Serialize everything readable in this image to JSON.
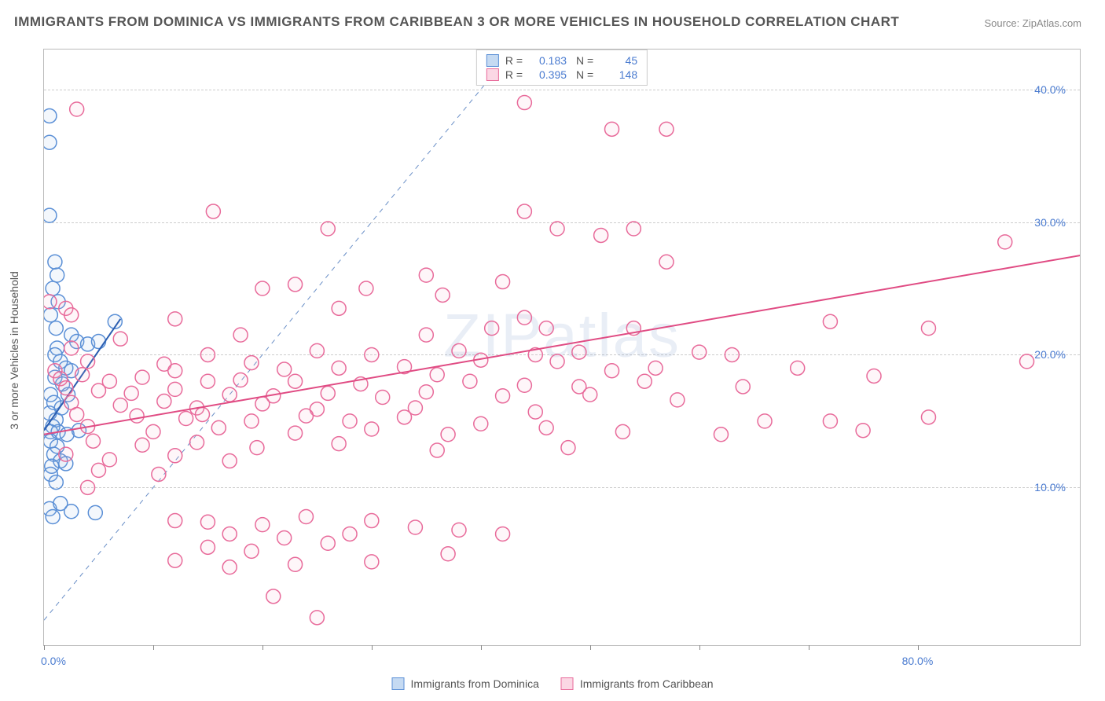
{
  "title": "IMMIGRANTS FROM DOMINICA VS IMMIGRANTS FROM CARIBBEAN 3 OR MORE VEHICLES IN HOUSEHOLD CORRELATION CHART",
  "source": "Source: ZipAtlas.com",
  "ylabel": "3 or more Vehicles in Household",
  "watermark": "ZIPatlas",
  "chart": {
    "type": "scatter",
    "xlim": [
      0,
      95
    ],
    "ylim": [
      -2,
      43
    ],
    "xticks": [
      0,
      10,
      20,
      30,
      40,
      50,
      60,
      70,
      80
    ],
    "xtick_labels": {
      "0": "0.0%",
      "80": "80.0%"
    },
    "yticks_grid": [
      10,
      20,
      30,
      40
    ],
    "ytick_labels": {
      "10": "10.0%",
      "20": "20.0%",
      "30": "30.0%",
      "40": "40.0%"
    },
    "grid_color": "#cccccc",
    "border_color": "#bbbbbb",
    "background_color": "#ffffff",
    "marker_radius": 9,
    "marker_stroke_width": 1.5,
    "marker_fill_opacity": 0.12,
    "diagonal": {
      "color": "#6a8fc7",
      "dash": "6,6",
      "width": 1
    }
  },
  "series": [
    {
      "id": "dominica",
      "label": "Immigrants from Dominica",
      "color_stroke": "#5a8fd6",
      "color_fill": "#9cc0e8",
      "R": "0.183",
      "N": "45",
      "regression": {
        "x1": 0,
        "y1": 14.3,
        "x2": 7,
        "y2": 22.7,
        "color": "#2a5db0",
        "width": 2
      },
      "points": [
        [
          0.5,
          38
        ],
        [
          0.5,
          36
        ],
        [
          0.5,
          30.5
        ],
        [
          1,
          27
        ],
        [
          1.2,
          26
        ],
        [
          0.8,
          25
        ],
        [
          1.3,
          24
        ],
        [
          0.6,
          23
        ],
        [
          1.1,
          22
        ],
        [
          2.5,
          21.5
        ],
        [
          3,
          21
        ],
        [
          4,
          20.8
        ],
        [
          5,
          21
        ],
        [
          6.5,
          22.5
        ],
        [
          1.2,
          20.5
        ],
        [
          1,
          20
        ],
        [
          1.5,
          19.5
        ],
        [
          2,
          19
        ],
        [
          2.5,
          18.8
        ],
        [
          1,
          18.3
        ],
        [
          1.7,
          17.8
        ],
        [
          2.2,
          17
        ],
        [
          0.6,
          17
        ],
        [
          0.9,
          16.4
        ],
        [
          1.6,
          16
        ],
        [
          0.5,
          15.6
        ],
        [
          1.1,
          15.1
        ],
        [
          0.8,
          14.6
        ],
        [
          0.6,
          14.2
        ],
        [
          1.3,
          14.2
        ],
        [
          2.1,
          14
        ],
        [
          3.2,
          14.3
        ],
        [
          0.6,
          13.5
        ],
        [
          1.2,
          13.1
        ],
        [
          0.9,
          12.5
        ],
        [
          1.5,
          12
        ],
        [
          0.7,
          11.6
        ],
        [
          2,
          11.8
        ],
        [
          0.6,
          11
        ],
        [
          1.1,
          10.4
        ],
        [
          0.5,
          8.4
        ],
        [
          2.5,
          8.2
        ],
        [
          4.7,
          8.1
        ],
        [
          0.8,
          7.8
        ],
        [
          1.5,
          8.8
        ]
      ]
    },
    {
      "id": "caribbean",
      "label": "Immigrants from Caribbean",
      "color_stroke": "#e86a9a",
      "color_fill": "#f5b6cd",
      "R": "0.395",
      "N": "148",
      "regression": {
        "x1": 0,
        "y1": 14.0,
        "x2": 95,
        "y2": 27.5,
        "color": "#e04b83",
        "width": 2
      },
      "points": [
        [
          44,
          39
        ],
        [
          52,
          37
        ],
        [
          57,
          37
        ],
        [
          3,
          38.5
        ],
        [
          15.5,
          30.8
        ],
        [
          44,
          30.8
        ],
        [
          26,
          29.5
        ],
        [
          47,
          29.5
        ],
        [
          54,
          29.5
        ],
        [
          51,
          29
        ],
        [
          88,
          28.5
        ],
        [
          57,
          27
        ],
        [
          35,
          26
        ],
        [
          42,
          25.5
        ],
        [
          20,
          25
        ],
        [
          23,
          25.3
        ],
        [
          29.5,
          25
        ],
        [
          36.5,
          24.5
        ],
        [
          0.5,
          24
        ],
        [
          2,
          23.5
        ],
        [
          2.5,
          23
        ],
        [
          27,
          23.5
        ],
        [
          12,
          22.7
        ],
        [
          72,
          22.5
        ],
        [
          41,
          22
        ],
        [
          44,
          22.8
        ],
        [
          46,
          22
        ],
        [
          54,
          22
        ],
        [
          18,
          21.5
        ],
        [
          7,
          21.2
        ],
        [
          35,
          21.5
        ],
        [
          81,
          22
        ],
        [
          2.5,
          20.5
        ],
        [
          15,
          20
        ],
        [
          25,
          20.3
        ],
        [
          30,
          20
        ],
        [
          38,
          20.3
        ],
        [
          40,
          19.6
        ],
        [
          45,
          20
        ],
        [
          49,
          20.2
        ],
        [
          60,
          20.2
        ],
        [
          63,
          20
        ],
        [
          4,
          19.5
        ],
        [
          11,
          19.3
        ],
        [
          12,
          18.8
        ],
        [
          19,
          19.4
        ],
        [
          22,
          18.9
        ],
        [
          27,
          19
        ],
        [
          33,
          19.1
        ],
        [
          36,
          18.5
        ],
        [
          47,
          19.5
        ],
        [
          52,
          18.8
        ],
        [
          56,
          19
        ],
        [
          69,
          19
        ],
        [
          90,
          19.5
        ],
        [
          1,
          18.8
        ],
        [
          1.5,
          18.2
        ],
        [
          3.5,
          18.5
        ],
        [
          6,
          18
        ],
        [
          9,
          18.3
        ],
        [
          15,
          18
        ],
        [
          18,
          18.1
        ],
        [
          23,
          18
        ],
        [
          29,
          17.8
        ],
        [
          39,
          18
        ],
        [
          44,
          17.7
        ],
        [
          49,
          17.6
        ],
        [
          55,
          18
        ],
        [
          64,
          17.6
        ],
        [
          76,
          18.4
        ],
        [
          2,
          17.5
        ],
        [
          5,
          17.3
        ],
        [
          8,
          17.1
        ],
        [
          12,
          17.4
        ],
        [
          17,
          17
        ],
        [
          21,
          16.9
        ],
        [
          26,
          17.1
        ],
        [
          31,
          16.8
        ],
        [
          35,
          17.2
        ],
        [
          42,
          16.9
        ],
        [
          50,
          17
        ],
        [
          58,
          16.6
        ],
        [
          2.5,
          16.4
        ],
        [
          7,
          16.2
        ],
        [
          11,
          16.5
        ],
        [
          14,
          16
        ],
        [
          20,
          16.3
        ],
        [
          25,
          15.9
        ],
        [
          34,
          16
        ],
        [
          45,
          15.7
        ],
        [
          3,
          15.5
        ],
        [
          8.5,
          15.4
        ],
        [
          13,
          15.2
        ],
        [
          14.5,
          15.5
        ],
        [
          19,
          15
        ],
        [
          24,
          15.4
        ],
        [
          28,
          15
        ],
        [
          33,
          15.3
        ],
        [
          40,
          14.8
        ],
        [
          66,
          15
        ],
        [
          72,
          15
        ],
        [
          81,
          15.3
        ],
        [
          4,
          14.6
        ],
        [
          10,
          14.2
        ],
        [
          16,
          14.5
        ],
        [
          23,
          14.1
        ],
        [
          30,
          14.4
        ],
        [
          37,
          14
        ],
        [
          46,
          14.5
        ],
        [
          53,
          14.2
        ],
        [
          62,
          14
        ],
        [
          4.5,
          13.5
        ],
        [
          9,
          13.2
        ],
        [
          14,
          13.4
        ],
        [
          19.5,
          13
        ],
        [
          27,
          13.3
        ],
        [
          36,
          12.8
        ],
        [
          48,
          13
        ],
        [
          75,
          14.3
        ],
        [
          2,
          12.5
        ],
        [
          6,
          12.1
        ],
        [
          12,
          12.4
        ],
        [
          17,
          12
        ],
        [
          5,
          11.3
        ],
        [
          10.5,
          11
        ],
        [
          4,
          10
        ],
        [
          12,
          7.5
        ],
        [
          15,
          7.4
        ],
        [
          20,
          7.2
        ],
        [
          24,
          7.8
        ],
        [
          30,
          7.5
        ],
        [
          17,
          6.5
        ],
        [
          22,
          6.2
        ],
        [
          28,
          6.5
        ],
        [
          34,
          7
        ],
        [
          38,
          6.8
        ],
        [
          42,
          6.5
        ],
        [
          15,
          5.5
        ],
        [
          19,
          5.2
        ],
        [
          26,
          5.8
        ],
        [
          12,
          4.5
        ],
        [
          23,
          4.2
        ],
        [
          30,
          4.4
        ],
        [
          37,
          5
        ],
        [
          17,
          4
        ],
        [
          21,
          1.8
        ],
        [
          25,
          0.2
        ]
      ]
    }
  ],
  "legend_bottom": [
    {
      "label": "Immigrants from Dominica",
      "stroke": "#5a8fd6",
      "fill": "#c5daf2"
    },
    {
      "label": "Immigrants from Caribbean",
      "stroke": "#e86a9a",
      "fill": "#fbd7e4"
    }
  ]
}
